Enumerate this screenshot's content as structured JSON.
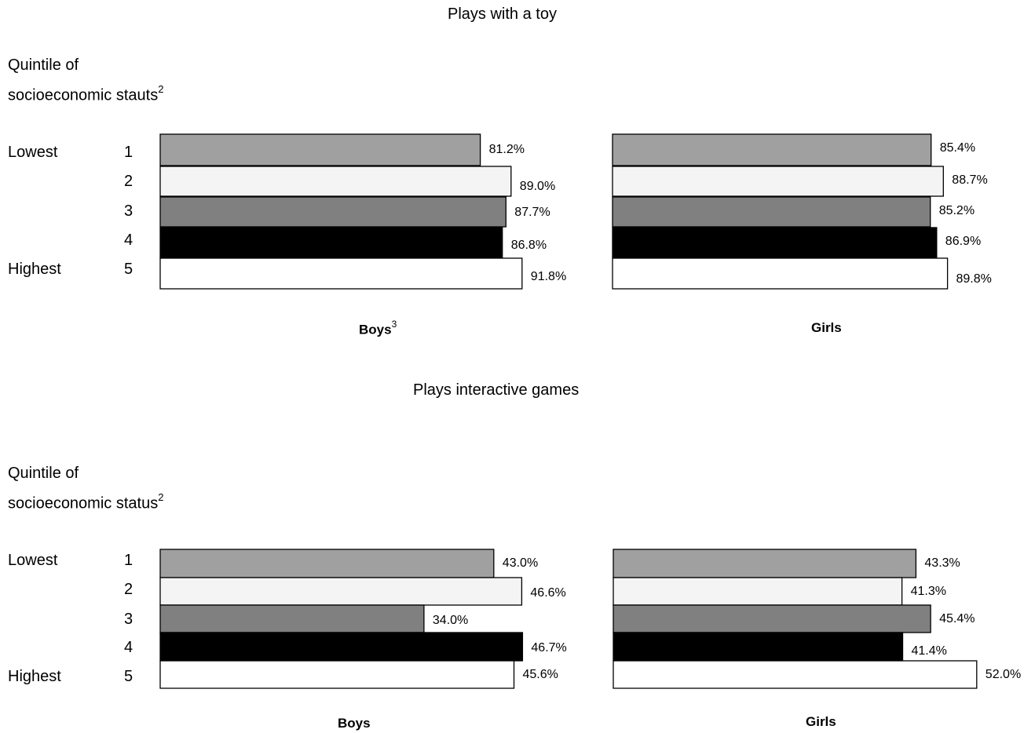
{
  "chart_data": [
    {
      "type": "bar",
      "orientation": "horizontal",
      "title": "Plays with a toy",
      "side_label": {
        "line1": "Quintile of",
        "line2": "socioeconomic stauts",
        "note": "2"
      },
      "row_labels": [
        "Lowest",
        "",
        "",
        "",
        "Highest"
      ],
      "categories": [
        "1",
        "2",
        "3",
        "4",
        "5"
      ],
      "colors": [
        "#a0a0a0",
        "#f4f4f4",
        "#808080",
        "#000000",
        "#ffffff"
      ],
      "panels": [
        {
          "name": "Boys",
          "note": "3",
          "values": [
            81.2,
            89.0,
            87.7,
            86.8,
            91.8
          ],
          "labels": [
            "81.2%",
            "89.0%",
            "87.7%",
            "86.8%",
            "91.8%"
          ]
        },
        {
          "name": "Girls",
          "note": "",
          "values": [
            85.4,
            88.7,
            85.2,
            86.9,
            89.8
          ],
          "labels": [
            "85.4%",
            "88.7%",
            "85.2%",
            "86.9%",
            "89.8%"
          ]
        }
      ]
    },
    {
      "type": "bar",
      "orientation": "horizontal",
      "title": "Plays interactive games",
      "side_label": {
        "line1": "Quintile of",
        "line2": "socioeconomic status",
        "note": "2"
      },
      "row_labels": [
        "Lowest",
        "",
        "",
        "",
        "Highest"
      ],
      "categories": [
        "1",
        "2",
        "3",
        "4",
        "5"
      ],
      "colors": [
        "#a0a0a0",
        "#f4f4f4",
        "#808080",
        "#000000",
        "#ffffff"
      ],
      "panels": [
        {
          "name": "Boys",
          "note": "",
          "values": [
            43.0,
            46.6,
            34.0,
            46.7,
            45.6
          ],
          "labels": [
            "43.0%",
            "46.6%",
            "34.0%",
            "46.7%",
            "45.6%"
          ]
        },
        {
          "name": "Girls",
          "note": "",
          "values": [
            43.3,
            41.3,
            45.4,
            41.4,
            52.0
          ],
          "labels": [
            "43.3%",
            "41.3%",
            "45.4%",
            "41.4%",
            "52.0%"
          ]
        }
      ]
    }
  ]
}
